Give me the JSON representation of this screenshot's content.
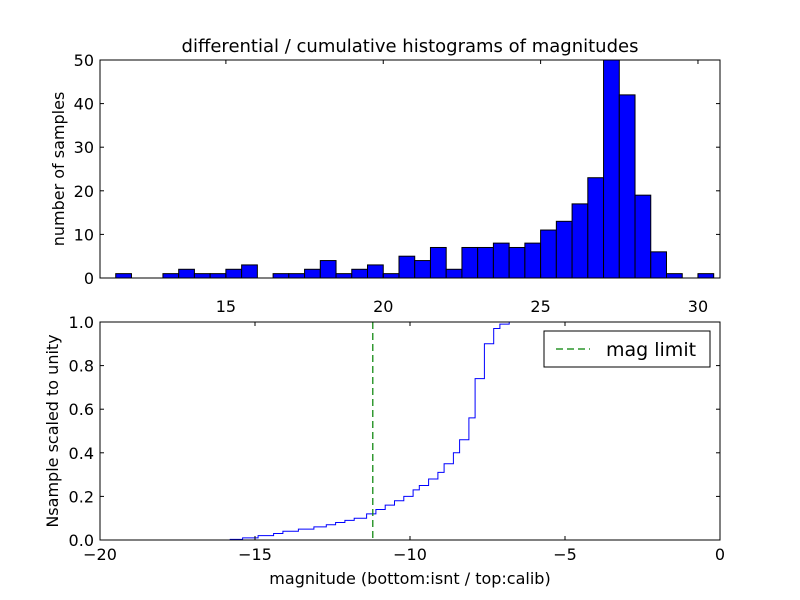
{
  "chart_data": [
    {
      "type": "bar",
      "title": "differential / cumulative histograms of magnitudes",
      "xlabel": "",
      "ylabel": "number of samples",
      "xlim": [
        11.0,
        30.7
      ],
      "ylim": [
        0,
        50
      ],
      "xticks": [
        "15",
        "20",
        "25",
        "30"
      ],
      "xtick_values": [
        15,
        20,
        25,
        30
      ],
      "yticks": [
        "0",
        "10",
        "20",
        "30",
        "40",
        "50"
      ],
      "ytick_values": [
        0,
        10,
        20,
        30,
        40,
        50
      ],
      "xaxis_position": "top",
      "bar_color": "#0000ff",
      "bin_width": 0.5,
      "bins": [
        {
          "x": 11.5,
          "count": 1
        },
        {
          "x": 12.0,
          "count": 0
        },
        {
          "x": 12.5,
          "count": 0
        },
        {
          "x": 13.0,
          "count": 1
        },
        {
          "x": 13.5,
          "count": 2
        },
        {
          "x": 14.0,
          "count": 1
        },
        {
          "x": 14.5,
          "count": 1
        },
        {
          "x": 15.0,
          "count": 2
        },
        {
          "x": 15.5,
          "count": 3
        },
        {
          "x": 16.0,
          "count": 0
        },
        {
          "x": 16.5,
          "count": 1
        },
        {
          "x": 17.0,
          "count": 1
        },
        {
          "x": 17.5,
          "count": 2
        },
        {
          "x": 18.0,
          "count": 4
        },
        {
          "x": 18.5,
          "count": 1
        },
        {
          "x": 19.0,
          "count": 2
        },
        {
          "x": 19.5,
          "count": 3
        },
        {
          "x": 20.0,
          "count": 1
        },
        {
          "x": 20.5,
          "count": 5
        },
        {
          "x": 21.0,
          "count": 4
        },
        {
          "x": 21.5,
          "count": 7
        },
        {
          "x": 22.0,
          "count": 2
        },
        {
          "x": 22.5,
          "count": 7
        },
        {
          "x": 23.0,
          "count": 7
        },
        {
          "x": 23.5,
          "count": 8
        },
        {
          "x": 24.0,
          "count": 7
        },
        {
          "x": 24.5,
          "count": 8
        },
        {
          "x": 25.0,
          "count": 11
        },
        {
          "x": 25.5,
          "count": 13
        },
        {
          "x": 26.0,
          "count": 17
        },
        {
          "x": 26.5,
          "count": 23
        },
        {
          "x": 27.0,
          "count": 50
        },
        {
          "x": 27.5,
          "count": 42
        },
        {
          "x": 28.0,
          "count": 19
        },
        {
          "x": 28.5,
          "count": 6
        },
        {
          "x": 29.0,
          "count": 1
        },
        {
          "x": 29.5,
          "count": 0
        },
        {
          "x": 30.0,
          "count": 1
        }
      ]
    },
    {
      "type": "line",
      "xlabel": "magnitude (bottom:isnt / top:calib)",
      "ylabel": "Nsample scaled to unity",
      "xlim": [
        -20,
        0
      ],
      "ylim": [
        0.0,
        1.0
      ],
      "xticks": [
        "−20",
        "−15",
        "−10",
        "−5",
        "0"
      ],
      "xtick_values": [
        -20,
        -15,
        -10,
        -5,
        0
      ],
      "yticks": [
        "0.0",
        "0.2",
        "0.4",
        "0.6",
        "0.8",
        "1.0"
      ],
      "ytick_values": [
        0.0,
        0.2,
        0.4,
        0.6,
        0.8,
        1.0
      ],
      "series": [
        {
          "kind": "step",
          "color": "#0000ff",
          "x": [
            -20,
            -15.8,
            -15.4,
            -14.9,
            -14.4,
            -14.1,
            -13.6,
            -13.1,
            -12.7,
            -12.4,
            -12.1,
            -11.8,
            -11.4,
            -11.1,
            -10.8,
            -10.5,
            -10.2,
            -9.9,
            -9.7,
            -9.4,
            -9.1,
            -8.9,
            -8.6,
            -8.4,
            -8.1,
            -7.9,
            -7.6,
            -7.3,
            -7.1,
            -6.8,
            -6.5,
            0
          ],
          "y": [
            0.0,
            0.003,
            0.01,
            0.02,
            0.03,
            0.04,
            0.05,
            0.06,
            0.07,
            0.08,
            0.09,
            0.1,
            0.12,
            0.14,
            0.16,
            0.18,
            0.2,
            0.23,
            0.25,
            0.28,
            0.31,
            0.35,
            0.4,
            0.46,
            0.56,
            0.74,
            0.9,
            0.97,
            0.99,
            1.0,
            1.0,
            1.0
          ]
        },
        {
          "kind": "vline",
          "name": "mag limit",
          "color": "#008000",
          "dash": "dashed",
          "x": -11.2
        }
      ],
      "legend": {
        "position": "top-right",
        "entries": [
          "mag limit"
        ]
      }
    }
  ]
}
